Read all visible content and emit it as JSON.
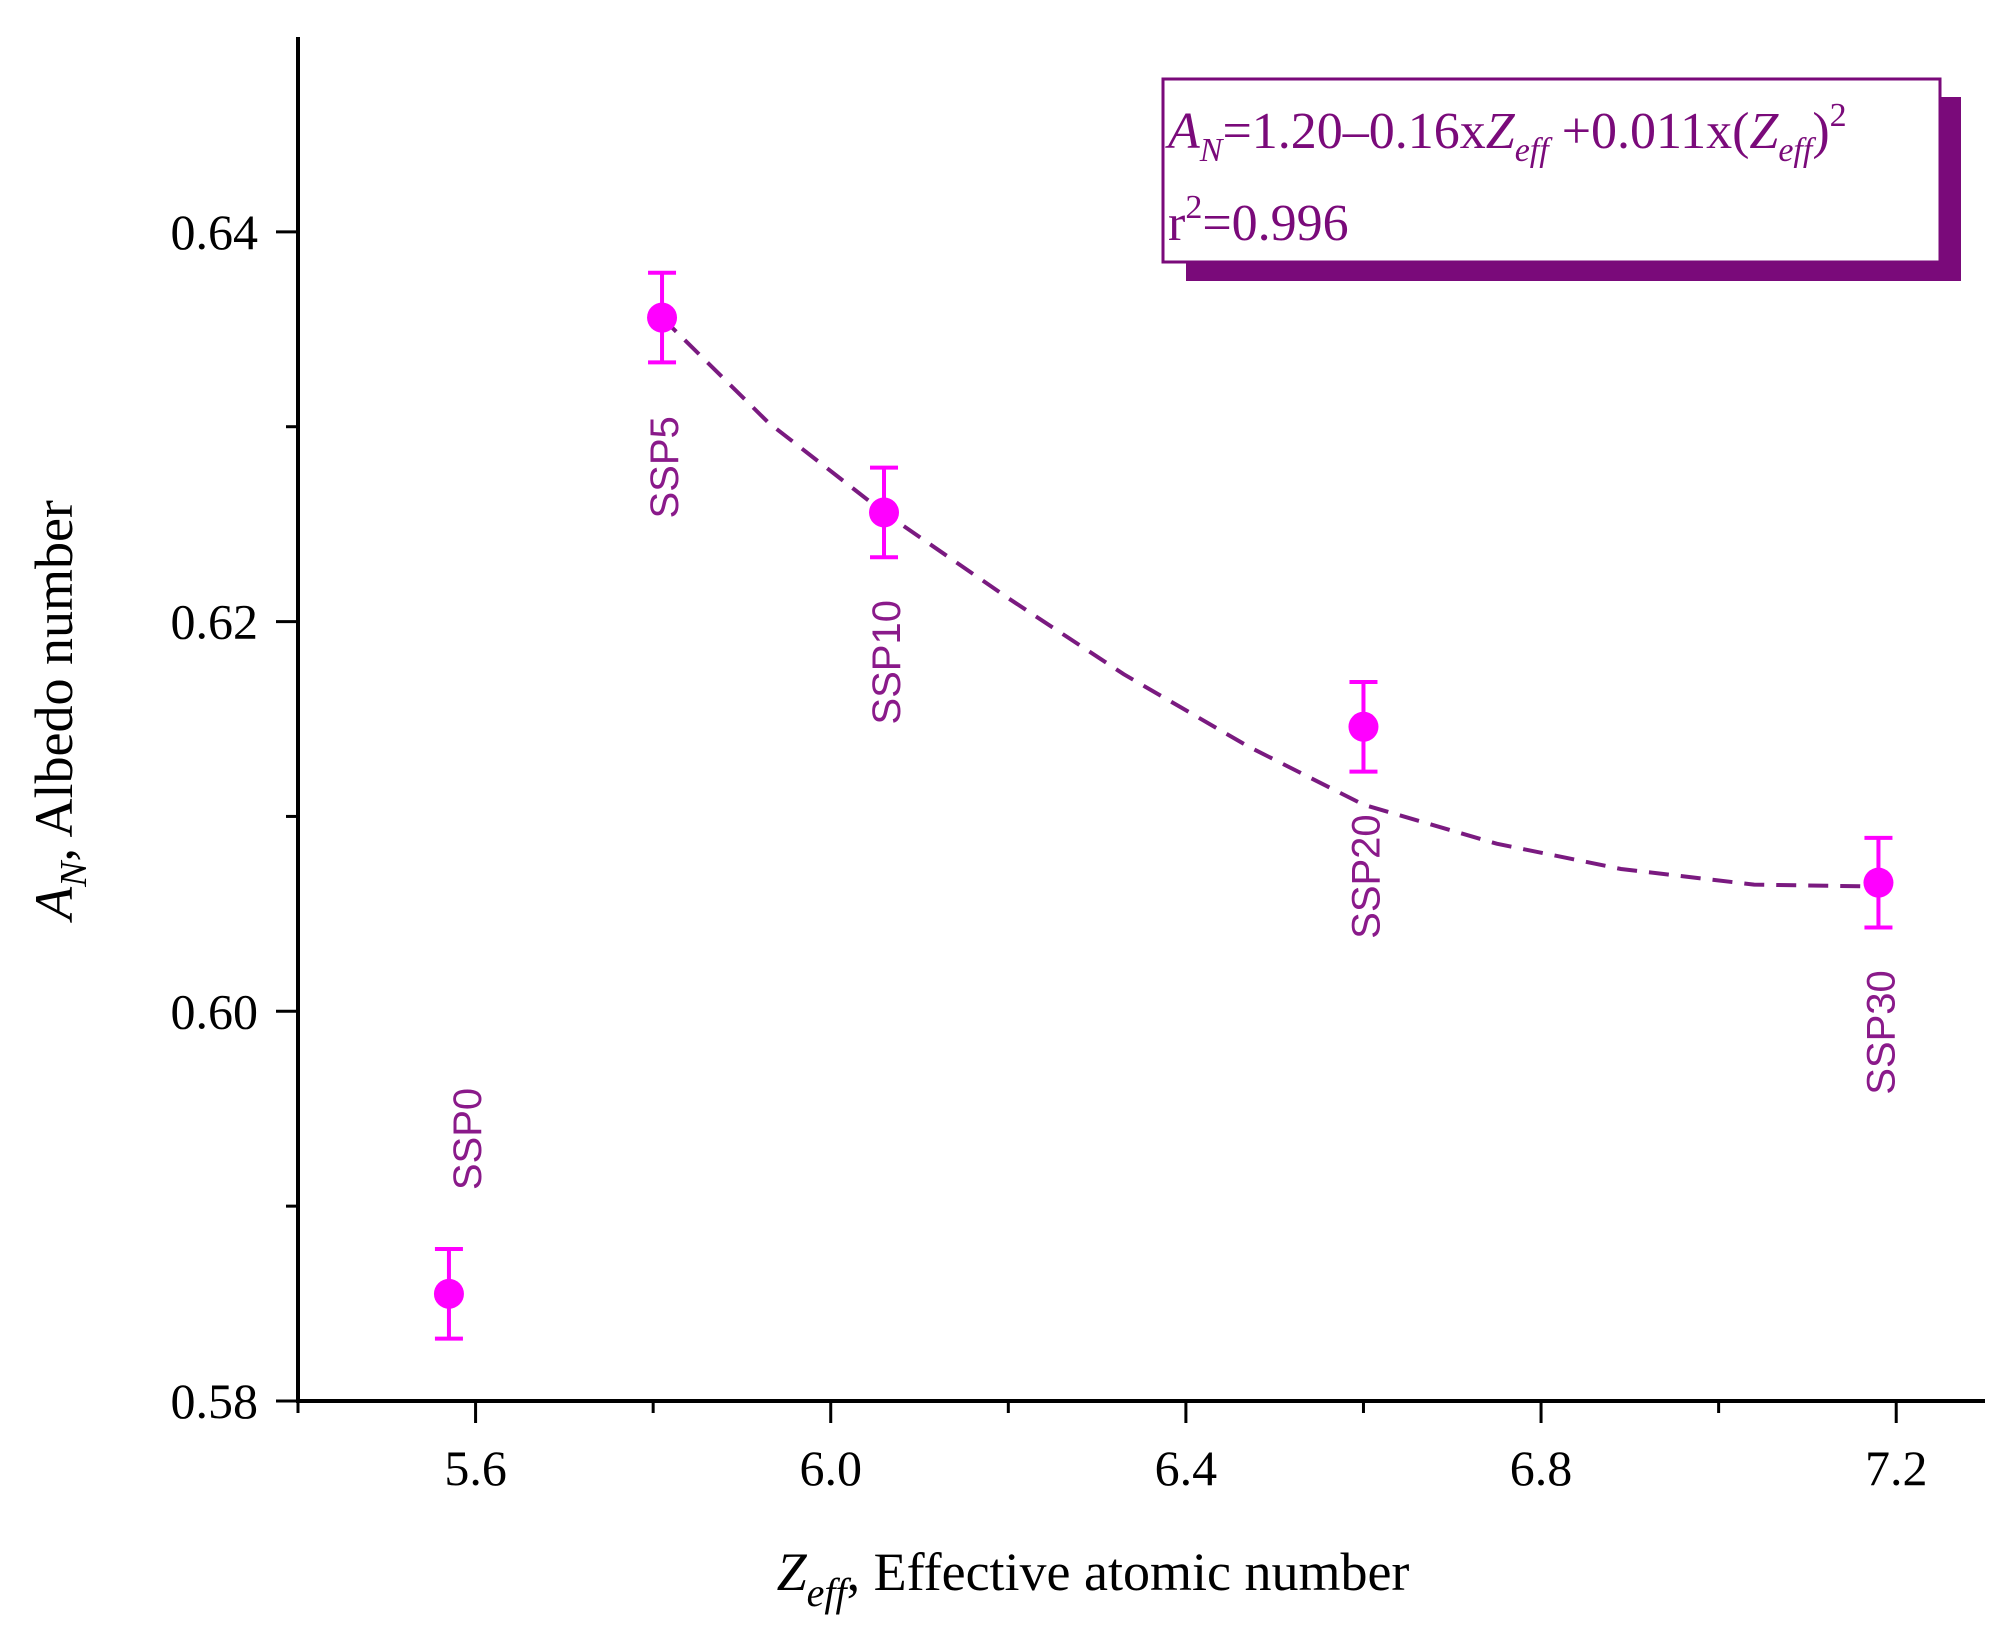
{
  "chart_data": {
    "type": "scatter",
    "title": "",
    "xlabel": {
      "symbol": "Z",
      "subscript": "eff",
      "text": "Effective atomic number"
    },
    "ylabel": {
      "symbol": "A",
      "subscript": "N",
      "text": "Albedo number"
    },
    "xlim": [
      5.4,
      7.3
    ],
    "ylim": [
      0.58,
      0.65
    ],
    "x_ticks": [
      5.6,
      6.0,
      6.4,
      6.8,
      7.2
    ],
    "x_tick_labels": [
      "5.6",
      "6.0",
      "6.4",
      "6.8",
      "7.2"
    ],
    "x_minor_ticks": [
      5.4,
      5.8,
      6.2,
      6.6,
      7.0
    ],
    "y_ticks": [
      0.58,
      0.6,
      0.62,
      0.64
    ],
    "y_tick_labels": [
      "0.58",
      "0.60",
      "0.62",
      "0.64"
    ],
    "y_minor_ticks": [
      0.59,
      0.61,
      0.63
    ],
    "grid": false,
    "series": [
      {
        "name": "Albedo number",
        "color": "#ff00ff",
        "points": [
          {
            "label": "SSP0",
            "x": 5.57,
            "y": 0.5855,
            "err": 0.0023
          },
          {
            "label": "SSP5",
            "x": 5.81,
            "y": 0.6356,
            "err": 0.0023
          },
          {
            "label": "SSP10",
            "x": 6.06,
            "y": 0.6256,
            "err": 0.0023
          },
          {
            "label": "SSP20",
            "x": 6.6,
            "y": 0.6146,
            "err": 0.0023
          },
          {
            "label": "SSP30",
            "x": 7.18,
            "y": 0.6066,
            "err": 0.0023
          }
        ]
      }
    ],
    "fit": {
      "name": "Quadratic fit",
      "color": "#7a1a80",
      "style": "dashed",
      "x": [
        5.81,
        5.93,
        6.06,
        6.2,
        6.33,
        6.47,
        6.6,
        6.75,
        6.89,
        7.04,
        7.18
      ],
      "y": [
        0.6356,
        0.6302,
        0.6256,
        0.6212,
        0.6173,
        0.6136,
        0.6106,
        0.6086,
        0.6073,
        0.6065,
        0.6064
      ]
    },
    "annotation": {
      "equation": {
        "lhs_symbol": "A",
        "lhs_sub": "N",
        "part1": "=1.20–0.16x",
        "var": "Z",
        "var_sub": "eff",
        "part2": " +0.011x(",
        "sq_sub": "eff",
        "part3": ")",
        "power": "2"
      },
      "r2_base": "r",
      "r2_power": "2",
      "r2_value": "=0.996",
      "box_color": "#7a0a7a",
      "placement": "top-right"
    },
    "label_color": "#8a1a8a"
  }
}
